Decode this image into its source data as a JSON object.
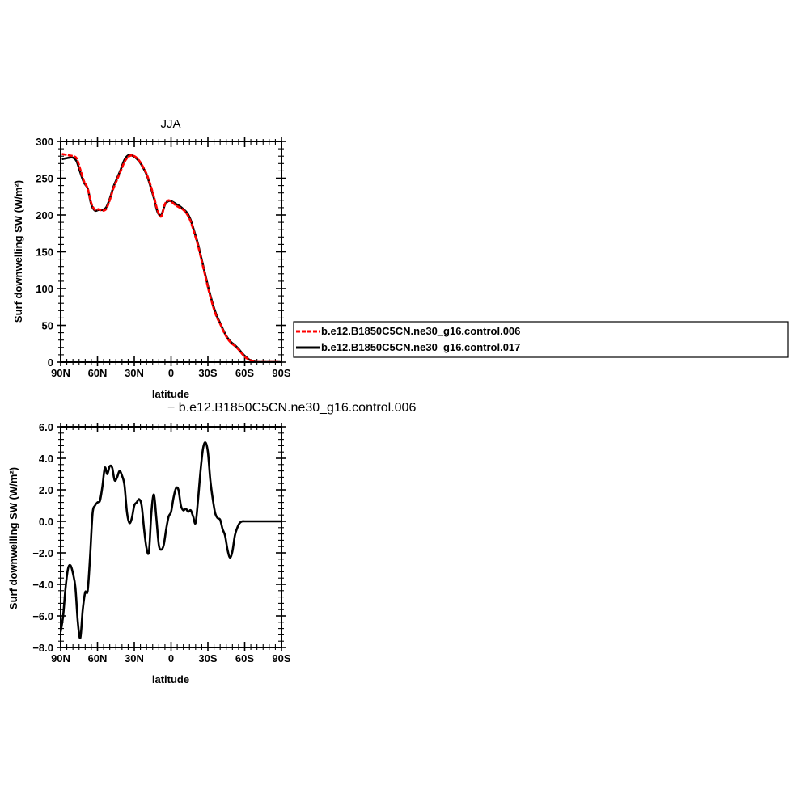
{
  "chart_data": [
    {
      "type": "line",
      "title": "JJA",
      "xlabel": "latitude",
      "ylabel": "Surf downwelling SW (W/m²)",
      "xlim": [
        90,
        -90
      ],
      "ylim": [
        0,
        300
      ],
      "x_ticks": [
        {
          "value": 90,
          "label": "90N"
        },
        {
          "value": 60,
          "label": "60N"
        },
        {
          "value": 30,
          "label": "30N"
        },
        {
          "value": 0,
          "label": "0"
        },
        {
          "value": -30,
          "label": "30S"
        },
        {
          "value": -60,
          "label": "60S"
        },
        {
          "value": -90,
          "label": "90S"
        }
      ],
      "y_ticks": [
        {
          "value": 0,
          "label": "0"
        },
        {
          "value": 50,
          "label": "50"
        },
        {
          "value": 100,
          "label": "100"
        },
        {
          "value": 150,
          "label": "150"
        },
        {
          "value": 200,
          "label": "200"
        },
        {
          "value": 250,
          "label": "250"
        },
        {
          "value": 300,
          "label": "300"
        }
      ],
      "legend_position": "right",
      "series": [
        {
          "name": "b.e12.B1850C5CN.ne30_g16.control.006",
          "color": "#ff0000",
          "dash": "dashed",
          "x": [
            89,
            86,
            83,
            80,
            77,
            74,
            71,
            68,
            65,
            62,
            59,
            56,
            53,
            50,
            47,
            44,
            41,
            38,
            35,
            32,
            29,
            26,
            23,
            20,
            17,
            14,
            11,
            8,
            5,
            2,
            -1,
            -4,
            -7,
            -10,
            -13,
            -16,
            -19,
            -22,
            -25,
            -28,
            -31,
            -34,
            -37,
            -40,
            -43,
            -46,
            -49,
            -52,
            -55,
            -58,
            -61,
            -64,
            -67,
            -70,
            -73,
            -76,
            -79,
            -82,
            -85,
            -89
          ],
          "y": [
            283,
            282,
            281,
            280,
            277,
            262,
            246,
            236,
            216,
            207,
            208,
            206,
            208,
            220,
            236,
            248,
            260,
            272,
            279,
            281,
            279,
            274,
            266,
            256,
            242,
            225,
            206,
            198,
            215,
            220,
            217,
            213,
            210,
            207,
            201,
            191,
            175,
            158,
            137,
            116,
            95,
            77,
            62,
            52,
            41,
            32,
            26,
            22,
            17,
            11,
            6,
            3,
            1,
            0,
            0,
            0,
            0,
            0,
            0,
            0
          ]
        },
        {
          "name": "b.e12.B1850C5CN.ne30_g16.control.017",
          "color": "#000000",
          "dash": "solid",
          "x": [
            89,
            86,
            83,
            80,
            77,
            74,
            71,
            68,
            65,
            62,
            59,
            56,
            53,
            50,
            47,
            44,
            41,
            38,
            35,
            32,
            29,
            26,
            23,
            20,
            17,
            14,
            11,
            8,
            5,
            2,
            -1,
            -4,
            -7,
            -10,
            -13,
            -16,
            -19,
            -22,
            -25,
            -28,
            -31,
            -34,
            -37,
            -40,
            -43,
            -46,
            -49,
            -52,
            -55,
            -58,
            -61,
            -64,
            -67,
            -70,
            -73,
            -76,
            -79,
            -82,
            -85,
            -89
          ],
          "y": [
            276,
            277,
            278,
            278,
            273,
            258,
            244,
            236,
            214,
            206,
            207,
            207,
            210,
            222,
            238,
            250,
            262,
            275,
            281,
            281,
            278,
            273,
            265,
            255,
            240,
            223,
            204,
            200,
            214,
            219,
            218,
            215,
            212,
            208,
            203,
            193,
            177,
            160,
            139,
            118,
            97,
            79,
            64,
            53,
            42,
            33,
            27,
            23,
            18,
            12,
            7,
            3,
            1,
            0,
            0,
            0,
            0,
            0,
            0,
            0
          ]
        }
      ]
    },
    {
      "type": "line",
      "title": "",
      "subtitle": "− b.e12.B1850C5CN.ne30_g16.control.006",
      "xlabel": "latitude",
      "ylabel": "Surf downwelling SW (W/m²)",
      "xlim": [
        90,
        -90
      ],
      "ylim": [
        -8,
        6
      ],
      "x_ticks": [
        {
          "value": 90,
          "label": "90N"
        },
        {
          "value": 60,
          "label": "60N"
        },
        {
          "value": 30,
          "label": "30N"
        },
        {
          "value": 0,
          "label": "0"
        },
        {
          "value": -30,
          "label": "30S"
        },
        {
          "value": -60,
          "label": "60S"
        },
        {
          "value": -90,
          "label": "90S"
        }
      ],
      "y_ticks": [
        {
          "value": -8,
          "label": "−8.0"
        },
        {
          "value": -6,
          "label": "−6.0"
        },
        {
          "value": -4,
          "label": "−4.0"
        },
        {
          "value": -2,
          "label": "−2.0"
        },
        {
          "value": 0,
          "label": "0.0"
        },
        {
          "value": 2,
          "label": "2.0"
        },
        {
          "value": 4,
          "label": "4.0"
        },
        {
          "value": 6,
          "label": "6.0"
        }
      ],
      "series": [
        {
          "color": "#000000",
          "x": [
            90,
            88,
            86,
            84,
            82,
            80,
            78,
            76,
            74,
            72,
            70,
            68,
            66,
            64,
            62,
            60,
            58,
            56,
            54,
            52,
            50,
            48,
            46,
            44,
            42,
            40,
            38,
            36,
            34,
            32,
            30,
            28,
            26,
            24,
            22,
            20,
            18,
            16,
            14,
            12,
            10,
            8,
            6,
            4,
            2,
            0,
            -2,
            -4,
            -6,
            -8,
            -10,
            -12,
            -14,
            -16,
            -18,
            -20,
            -22,
            -24,
            -26,
            -28,
            -30,
            -32,
            -34,
            -36,
            -38,
            -40,
            -42,
            -44,
            -46,
            -48,
            -50,
            -52,
            -54,
            -56,
            -58,
            -60,
            -62,
            -64,
            -66,
            -70,
            -75,
            -80,
            -85,
            -90
          ],
          "y": [
            -7.0,
            -6.0,
            -4.2,
            -3.0,
            -2.8,
            -3.3,
            -4.2,
            -6.4,
            -7.4,
            -5.6,
            -4.5,
            -4.4,
            -2.2,
            0.5,
            1.0,
            1.2,
            1.3,
            2.2,
            3.4,
            3.0,
            3.5,
            3.4,
            2.6,
            2.8,
            3.2,
            2.9,
            2.3,
            0.6,
            -0.1,
            0.2,
            1.0,
            1.2,
            1.4,
            1.0,
            -0.5,
            -1.7,
            -1.9,
            0.6,
            1.7,
            0.2,
            -1.5,
            -1.8,
            -1.5,
            -0.5,
            0.3,
            0.6,
            1.5,
            2.1,
            2.0,
            1.0,
            0.7,
            0.8,
            0.6,
            0.7,
            0.3,
            -0.1,
            1.4,
            3.2,
            4.6,
            5.0,
            4.4,
            2.6,
            1.4,
            0.5,
            0.2,
            0.1,
            -0.5,
            -0.9,
            -1.8,
            -2.3,
            -1.9,
            -0.9,
            -0.4,
            -0.1,
            0.0,
            0.0,
            0.0,
            0.0,
            0.0,
            0.0,
            0.0,
            0.0,
            0.0,
            0.0
          ]
        }
      ]
    }
  ]
}
